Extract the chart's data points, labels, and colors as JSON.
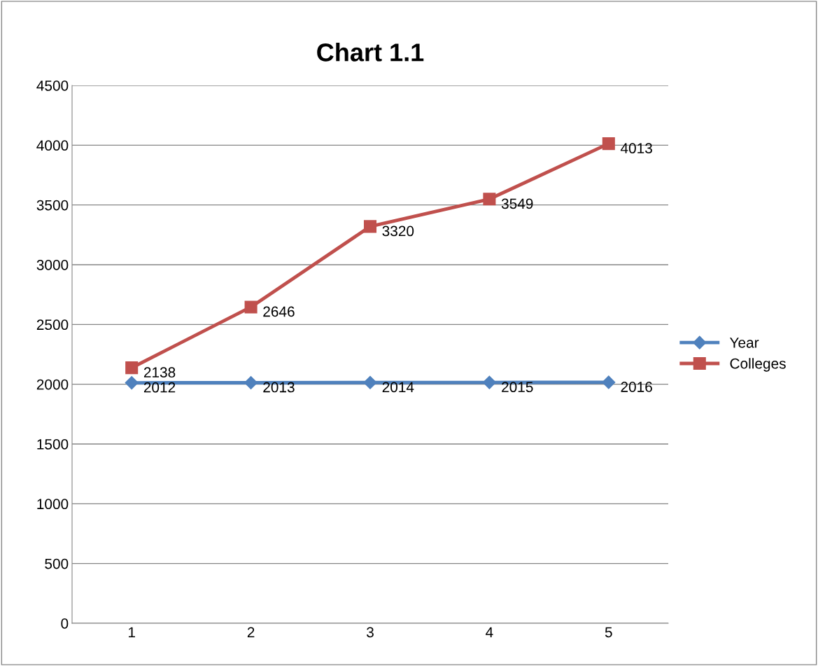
{
  "chart_data": {
    "type": "line",
    "title": "Chart 1.1",
    "categories": [
      "1",
      "2",
      "3",
      "4",
      "5"
    ],
    "series": [
      {
        "name": "Year",
        "color": "#4f81bd",
        "marker": "diamond",
        "values": [
          2012,
          2013,
          2014,
          2015,
          2016
        ]
      },
      {
        "name": "Colleges",
        "color": "#c0504d",
        "marker": "square",
        "values": [
          2138,
          2646,
          3320,
          3549,
          4013
        ]
      }
    ],
    "ylim": [
      0,
      4500
    ],
    "yticks": [
      0,
      500,
      1000,
      1500,
      2000,
      2500,
      3000,
      3500,
      4000,
      4500
    ],
    "grid": "y",
    "legend": "right",
    "data_labels": true
  }
}
